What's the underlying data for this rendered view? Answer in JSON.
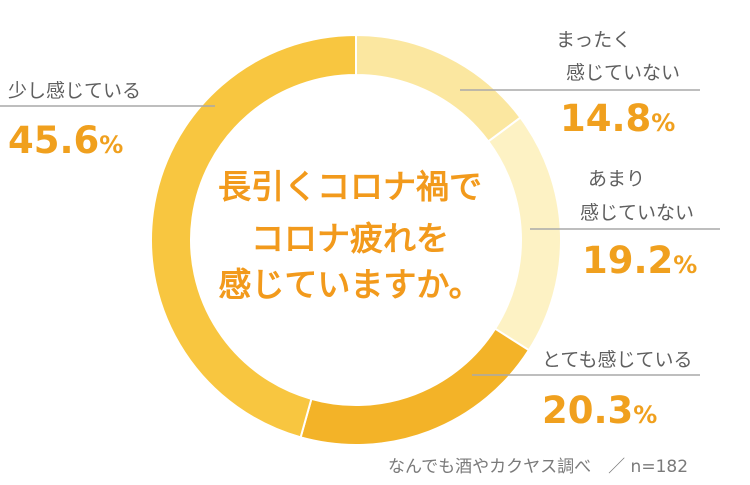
{
  "chart_data": {
    "type": "pie",
    "categories": [
      "まったく感じていない",
      "あまり感じていない",
      "とても感じている",
      "少し感じている"
    ],
    "values": [
      14.8,
      19.2,
      20.3,
      45.6
    ],
    "unit": "%",
    "center_text": [
      "長引くコロナ禍で",
      "コロナ疲れを",
      "感じていますか。"
    ],
    "colors": {
      "まったく感じていない": "#fbe7a0",
      "あまり感じていない": "#fdf2c4",
      "とても感じている": "#f3b328",
      "少し感じている": "#f8c640"
    },
    "accent": "#f0a01e",
    "leader_line": "#a9a9a9"
  },
  "labels": [
    {
      "lines": [
        "まったく",
        "感じていない"
      ],
      "value": "14.8",
      "unit": "%"
    },
    {
      "lines": [
        "あまり",
        "感じていない"
      ],
      "value": "19.2",
      "unit": "%"
    },
    {
      "lines": [
        "とても感じている"
      ],
      "value": "20.3",
      "unit": "%"
    },
    {
      "lines": [
        "少し感じている"
      ],
      "value": "45.6",
      "unit": "%"
    }
  ],
  "source": "なんでも酒やカクヤス調べ　／ n=182"
}
